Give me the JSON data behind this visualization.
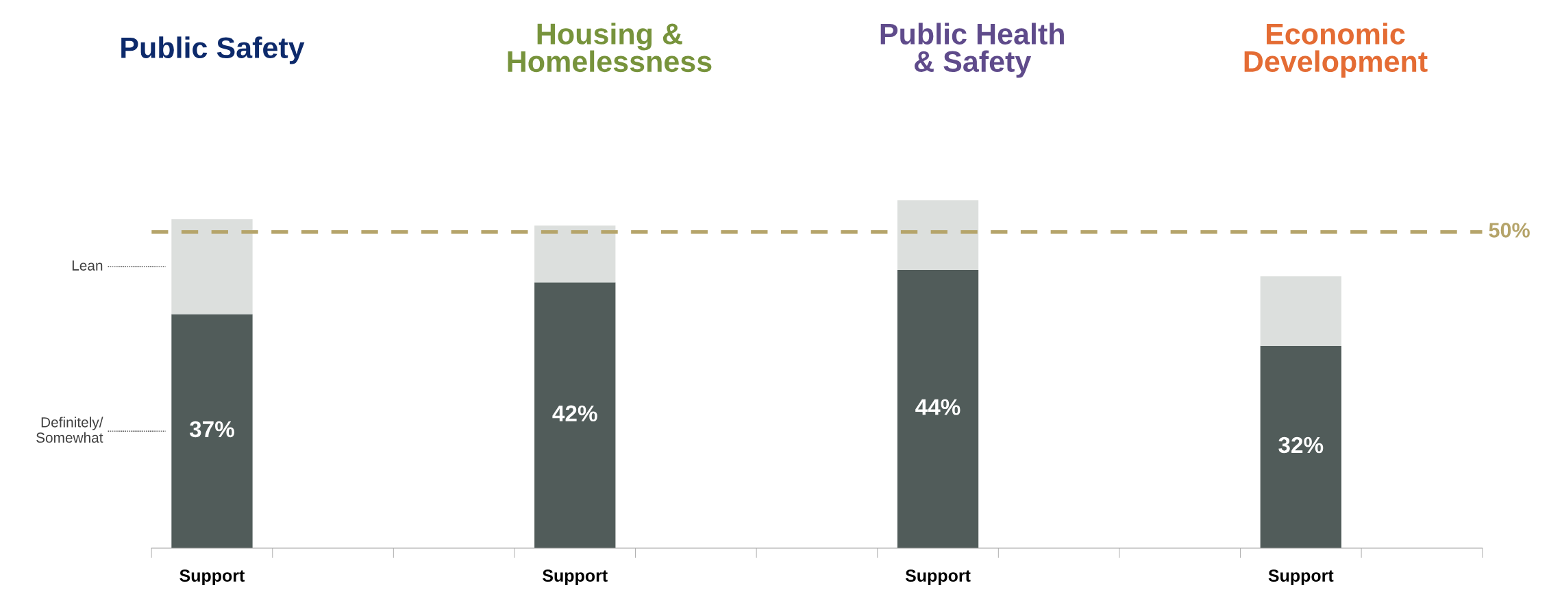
{
  "chart_data": {
    "type": "bar",
    "stacked": true,
    "categories": [
      "Support",
      null,
      null,
      "Support",
      null,
      null,
      "Support",
      null,
      null,
      "Support",
      null
    ],
    "series": [
      {
        "name": "Definitely/\nSomewhat",
        "color": "#515c5a",
        "values": [
          37,
          null,
          null,
          42,
          null,
          null,
          44,
          null,
          null,
          32,
          null
        ],
        "value_labels": [
          "37%",
          null,
          null,
          "42%",
          null,
          null,
          "44%",
          null,
          null,
          "32%",
          null
        ]
      },
      {
        "name": "Lean",
        "color": "#dcdfdd",
        "values": [
          15,
          null,
          null,
          9,
          null,
          null,
          11,
          null,
          null,
          11,
          null
        ]
      }
    ],
    "ref_lines": [
      {
        "axis": "y",
        "value": 50,
        "label": "50%",
        "color": "#b5a46a",
        "line_style": "dashed"
      }
    ],
    "annotations": [
      "Public Safety",
      "Housing &\nHomelessness",
      "Public Health\n& Safety",
      "Economic\nDevelopment"
    ]
  }
}
